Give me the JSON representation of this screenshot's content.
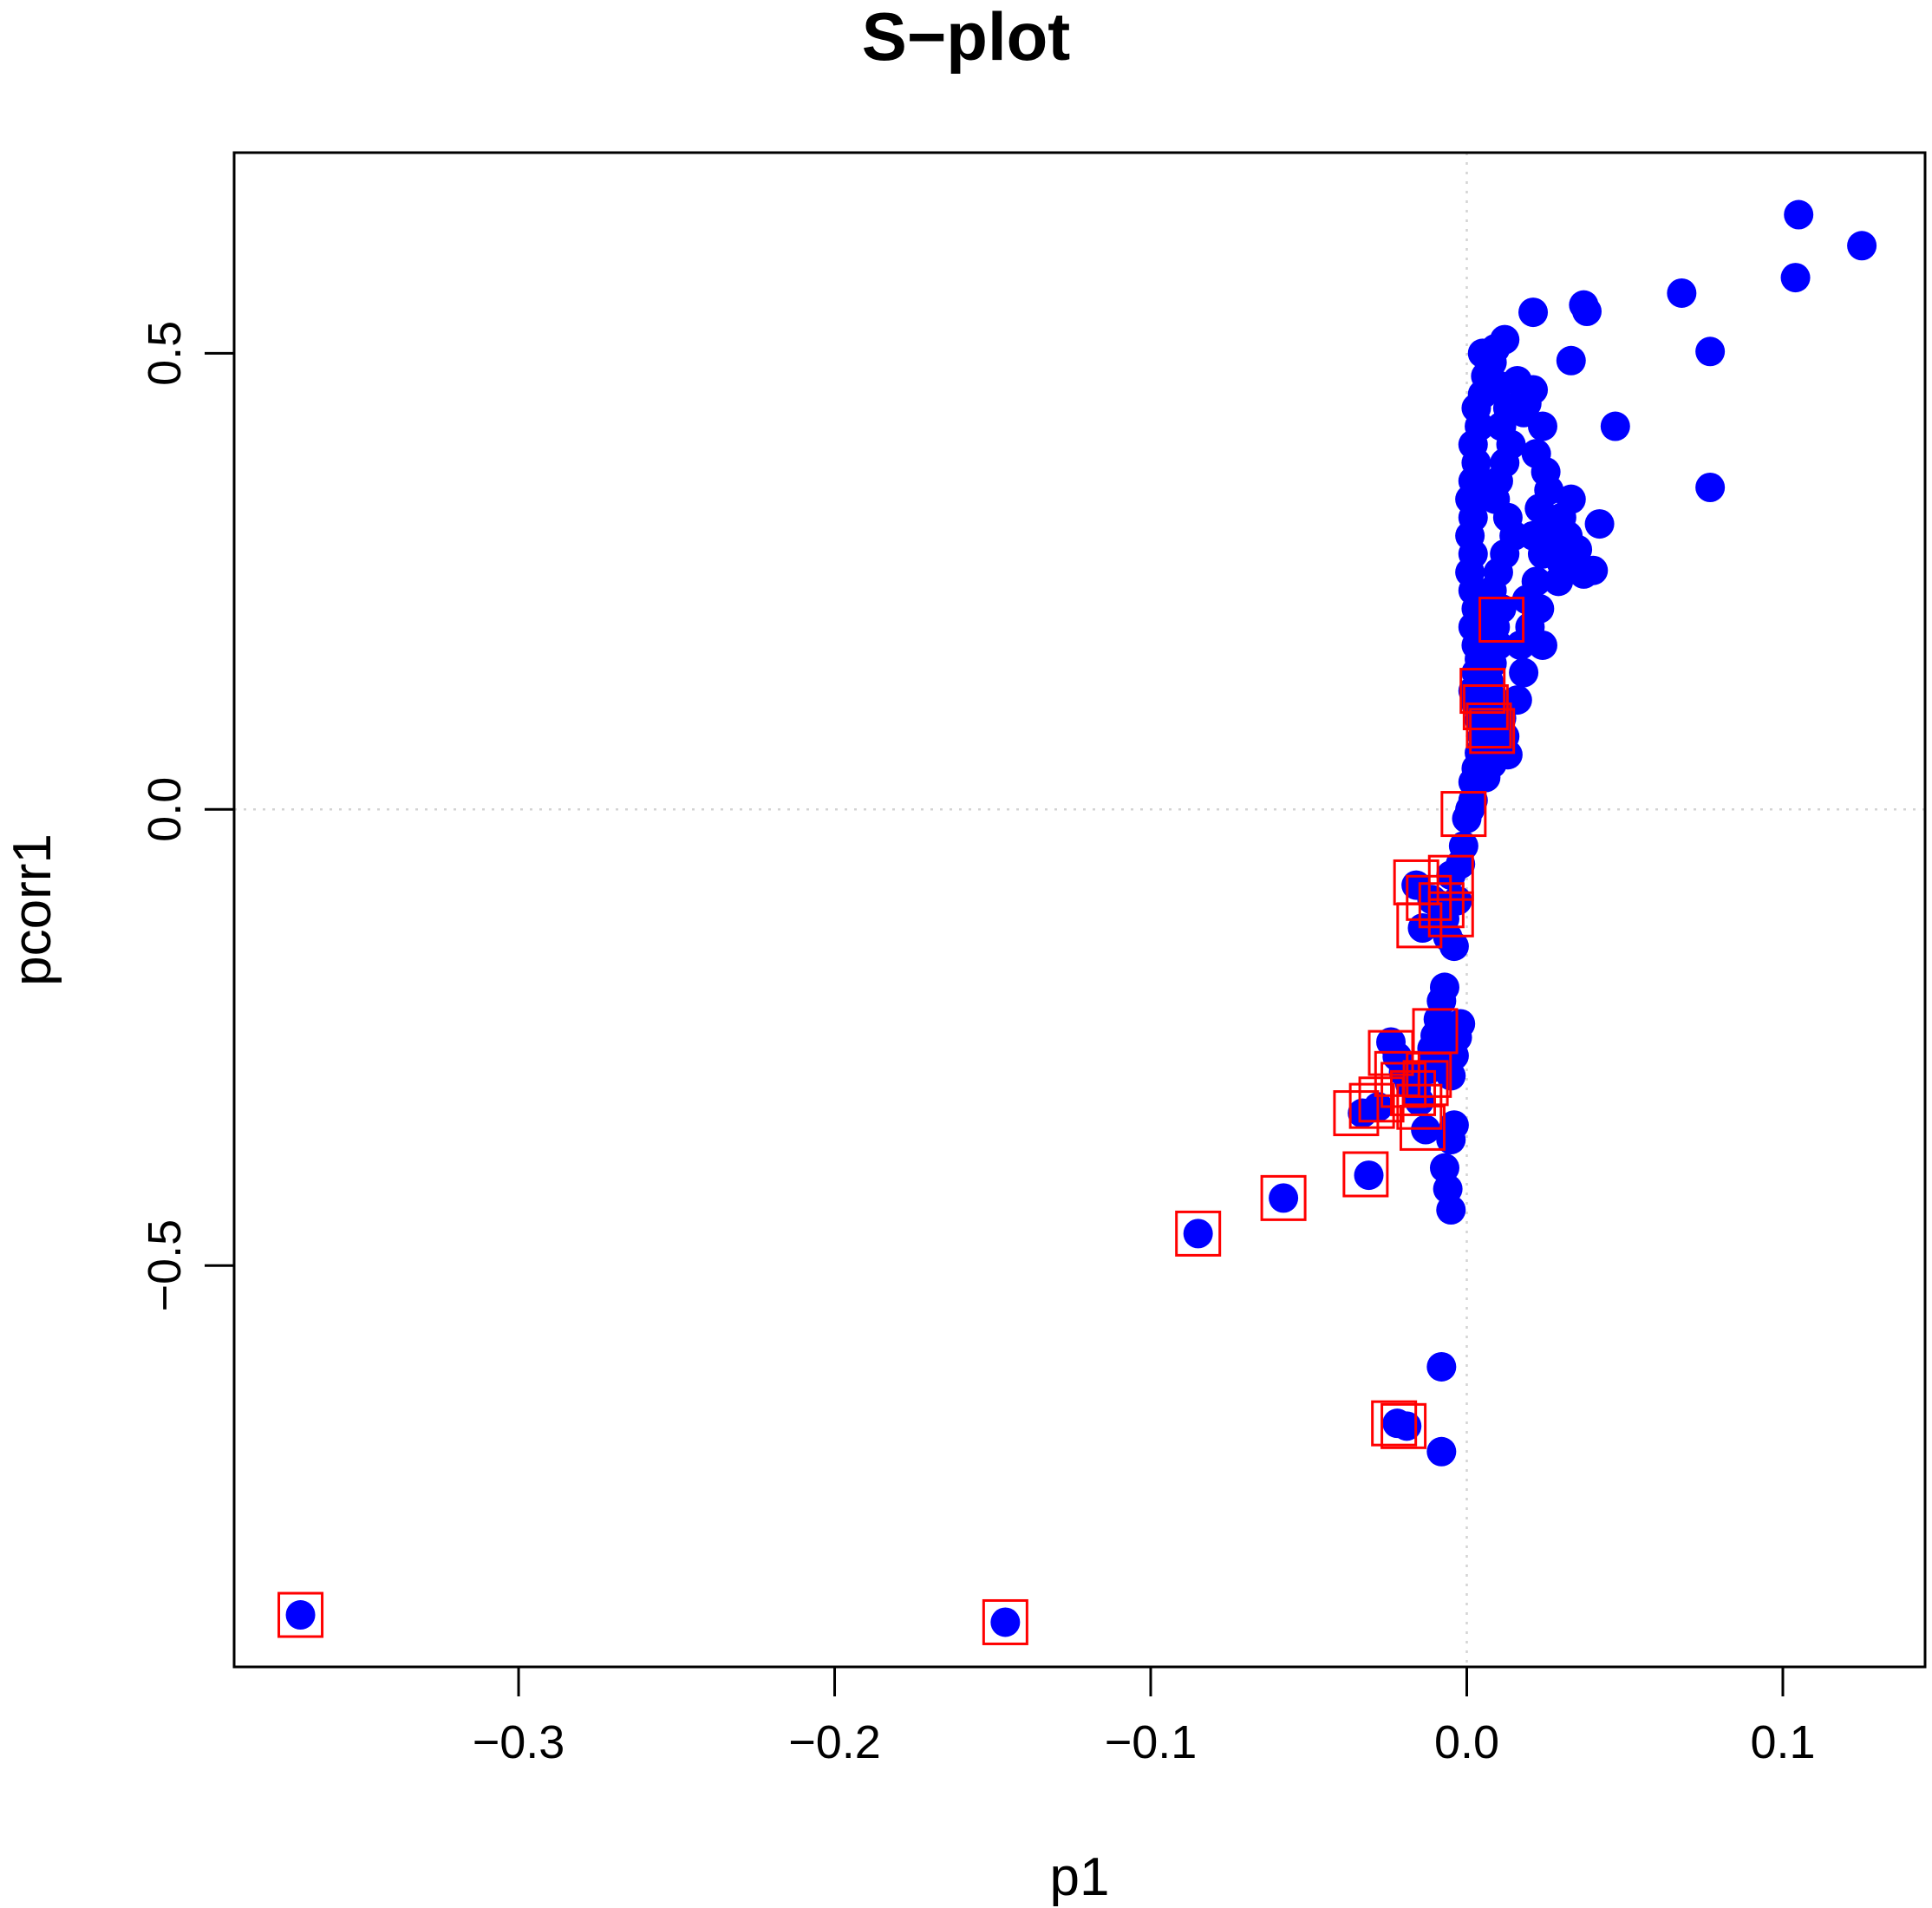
{
  "chart_data": {
    "type": "scatter",
    "title": "S−plot",
    "xlabel": "p1",
    "ylabel": "pcorr1",
    "xlim": [
      -0.39,
      0.145
    ],
    "ylim": [
      -0.94,
      0.72
    ],
    "x_ticks": [
      {
        "value": -0.3,
        "label": "−0.3"
      },
      {
        "value": -0.2,
        "label": "−0.2"
      },
      {
        "value": -0.1,
        "label": "−0.1"
      },
      {
        "value": 0.0,
        "label": "0.0"
      },
      {
        "value": 0.1,
        "label": "0.1"
      }
    ],
    "y_ticks": [
      {
        "value": -0.5,
        "label": "−0.5"
      },
      {
        "value": 0.0,
        "label": "0.0"
      },
      {
        "value": 0.5,
        "label": "0.5"
      }
    ],
    "reference_lines": {
      "x": 0.0,
      "y": 0.0
    },
    "grid": false,
    "legend": "none",
    "colors": {
      "points": "#0000ff",
      "highlight": "#ff0000",
      "reference_line": "#d3d3d3"
    },
    "series": [
      {
        "marker": "filled-circle",
        "points": [
          [
            -0.369,
            -0.883
          ],
          [
            -0.146,
            -0.891
          ],
          [
            -0.085,
            -0.465
          ],
          [
            -0.058,
            -0.426
          ],
          [
            -0.031,
            -0.401
          ],
          [
            -0.008,
            -0.611
          ],
          [
            -0.022,
            -0.673
          ],
          [
            -0.019,
            -0.676
          ],
          [
            -0.008,
            -0.704
          ],
          [
            -0.005,
            -0.439
          ],
          [
            -0.006,
            -0.416
          ],
          [
            -0.007,
            -0.393
          ],
          [
            -0.005,
            -0.362
          ],
          [
            -0.004,
            -0.346
          ],
          [
            -0.033,
            -0.333
          ],
          [
            -0.028,
            -0.326
          ],
          [
            -0.024,
            -0.255
          ],
          [
            -0.022,
            -0.271
          ],
          [
            -0.02,
            -0.288
          ],
          [
            -0.018,
            -0.301
          ],
          [
            -0.016,
            -0.306
          ],
          [
            -0.015,
            -0.32
          ],
          [
            -0.013,
            -0.351
          ],
          [
            -0.012,
            -0.285
          ],
          [
            -0.011,
            -0.262
          ],
          [
            -0.01,
            -0.248
          ],
          [
            -0.009,
            -0.23
          ],
          [
            -0.008,
            -0.21
          ],
          [
            -0.007,
            -0.195
          ],
          [
            -0.006,
            -0.248
          ],
          [
            -0.005,
            -0.292
          ],
          [
            -0.004,
            -0.27
          ],
          [
            -0.003,
            -0.25
          ],
          [
            -0.002,
            -0.235
          ],
          [
            -0.016,
            -0.083
          ],
          [
            -0.014,
            -0.13
          ],
          [
            -0.011,
            -0.099
          ],
          [
            -0.009,
            -0.104
          ],
          [
            -0.007,
            -0.12
          ],
          [
            -0.006,
            -0.14
          ],
          [
            -0.005,
            -0.072
          ],
          [
            -0.004,
            -0.15
          ],
          [
            -0.003,
            -0.1
          ],
          [
            -0.002,
            -0.06
          ],
          [
            -0.001,
            -0.04
          ],
          [
            0.0,
            -0.01
          ],
          [
            0.001,
            0.0
          ],
          [
            0.002,
            0.01
          ],
          [
            0.002,
            0.03
          ],
          [
            0.003,
            0.045
          ],
          [
            0.004,
            0.062
          ],
          [
            0.005,
            0.08
          ],
          [
            0.004,
            0.098
          ],
          [
            0.003,
            0.115
          ],
          [
            0.002,
            0.13
          ],
          [
            0.003,
            0.15
          ],
          [
            0.004,
            0.165
          ],
          [
            0.003,
            0.18
          ],
          [
            0.002,
            0.2
          ],
          [
            0.003,
            0.22
          ],
          [
            0.002,
            0.24
          ],
          [
            0.001,
            0.26
          ],
          [
            0.002,
            0.28
          ],
          [
            0.001,
            0.3
          ],
          [
            0.002,
            0.32
          ],
          [
            0.001,
            0.34
          ],
          [
            0.002,
            0.36
          ],
          [
            0.003,
            0.38
          ],
          [
            0.002,
            0.4
          ],
          [
            0.004,
            0.42
          ],
          [
            0.003,
            0.44
          ],
          [
            0.005,
            0.455
          ],
          [
            0.006,
            0.475
          ],
          [
            0.005,
            0.5
          ],
          [
            0.009,
            0.505
          ],
          [
            0.012,
            0.515
          ],
          [
            0.008,
            0.49
          ],
          [
            0.01,
            0.465
          ],
          [
            0.013,
            0.44
          ],
          [
            0.011,
            0.42
          ],
          [
            0.014,
            0.4
          ],
          [
            0.012,
            0.38
          ],
          [
            0.01,
            0.36
          ],
          [
            0.009,
            0.34
          ],
          [
            0.013,
            0.32
          ],
          [
            0.015,
            0.3
          ],
          [
            0.012,
            0.28
          ],
          [
            0.01,
            0.26
          ],
          [
            0.008,
            0.24
          ],
          [
            0.011,
            0.22
          ],
          [
            0.009,
            0.2
          ],
          [
            0.01,
            0.18
          ],
          [
            0.008,
            0.16
          ],
          [
            0.007,
            0.14
          ],
          [
            0.009,
            0.12
          ],
          [
            0.011,
            0.1
          ],
          [
            0.012,
            0.08
          ],
          [
            0.01,
            0.06
          ],
          [
            0.008,
            0.05
          ],
          [
            0.006,
            0.035
          ],
          [
            0.013,
            0.06
          ],
          [
            0.016,
            0.12
          ],
          [
            0.018,
            0.15
          ],
          [
            0.017,
            0.18
          ],
          [
            0.02,
            0.2
          ],
          [
            0.019,
            0.23
          ],
          [
            0.022,
            0.25
          ],
          [
            0.024,
            0.28
          ],
          [
            0.021,
            0.3
          ],
          [
            0.023,
            0.33
          ],
          [
            0.026,
            0.35
          ],
          [
            0.025,
            0.37
          ],
          [
            0.022,
            0.39
          ],
          [
            0.024,
            0.42
          ],
          [
            0.019,
            0.445
          ],
          [
            0.021,
            0.46
          ],
          [
            0.028,
            0.29
          ],
          [
            0.03,
            0.32
          ],
          [
            0.033,
            0.34
          ],
          [
            0.032,
            0.3
          ],
          [
            0.03,
            0.27
          ],
          [
            0.029,
            0.25
          ],
          [
            0.035,
            0.285
          ],
          [
            0.024,
            0.18
          ],
          [
            0.023,
            0.22
          ],
          [
            0.037,
            0.258
          ],
          [
            0.027,
            0.305
          ],
          [
            0.018,
            0.435
          ],
          [
            0.016,
            0.47
          ],
          [
            0.021,
            0.545
          ],
          [
            0.037,
            0.553
          ],
          [
            0.038,
            0.546
          ],
          [
            0.033,
            0.492
          ],
          [
            0.042,
            0.313
          ],
          [
            0.04,
            0.262
          ],
          [
            0.047,
            0.42
          ],
          [
            0.068,
            0.566
          ],
          [
            0.077,
            0.502
          ],
          [
            0.077,
            0.353
          ],
          [
            0.104,
            0.583
          ],
          [
            0.105,
            0.652
          ],
          [
            0.125,
            0.618
          ]
        ]
      },
      {
        "marker": "open-square",
        "points": [
          [
            -0.369,
            -0.883
          ],
          [
            -0.146,
            -0.891
          ],
          [
            -0.085,
            -0.465
          ],
          [
            -0.058,
            -0.426
          ],
          [
            -0.032,
            -0.4
          ],
          [
            -0.023,
            -0.673
          ],
          [
            -0.02,
            -0.676
          ],
          [
            -0.035,
            -0.333
          ],
          [
            -0.03,
            -0.325
          ],
          [
            -0.027,
            -0.318
          ],
          [
            -0.024,
            -0.267
          ],
          [
            -0.022,
            -0.29
          ],
          [
            -0.02,
            -0.302
          ],
          [
            -0.017,
            -0.311
          ],
          [
            -0.015,
            -0.326
          ],
          [
            -0.014,
            -0.349
          ],
          [
            -0.013,
            -0.3
          ],
          [
            -0.012,
            -0.291
          ],
          [
            -0.01,
            -0.243
          ],
          [
            -0.016,
            -0.08
          ],
          [
            -0.015,
            -0.127
          ],
          [
            -0.012,
            -0.097
          ],
          [
            -0.008,
            -0.105
          ],
          [
            -0.005,
            -0.115
          ],
          [
            -0.005,
            -0.075
          ],
          [
            -0.001,
            -0.005
          ],
          [
            0.005,
            0.13
          ],
          [
            0.006,
            0.112
          ],
          [
            0.007,
            0.092
          ],
          [
            0.008,
            0.086
          ],
          [
            0.011,
            0.208
          ]
        ]
      }
    ]
  }
}
